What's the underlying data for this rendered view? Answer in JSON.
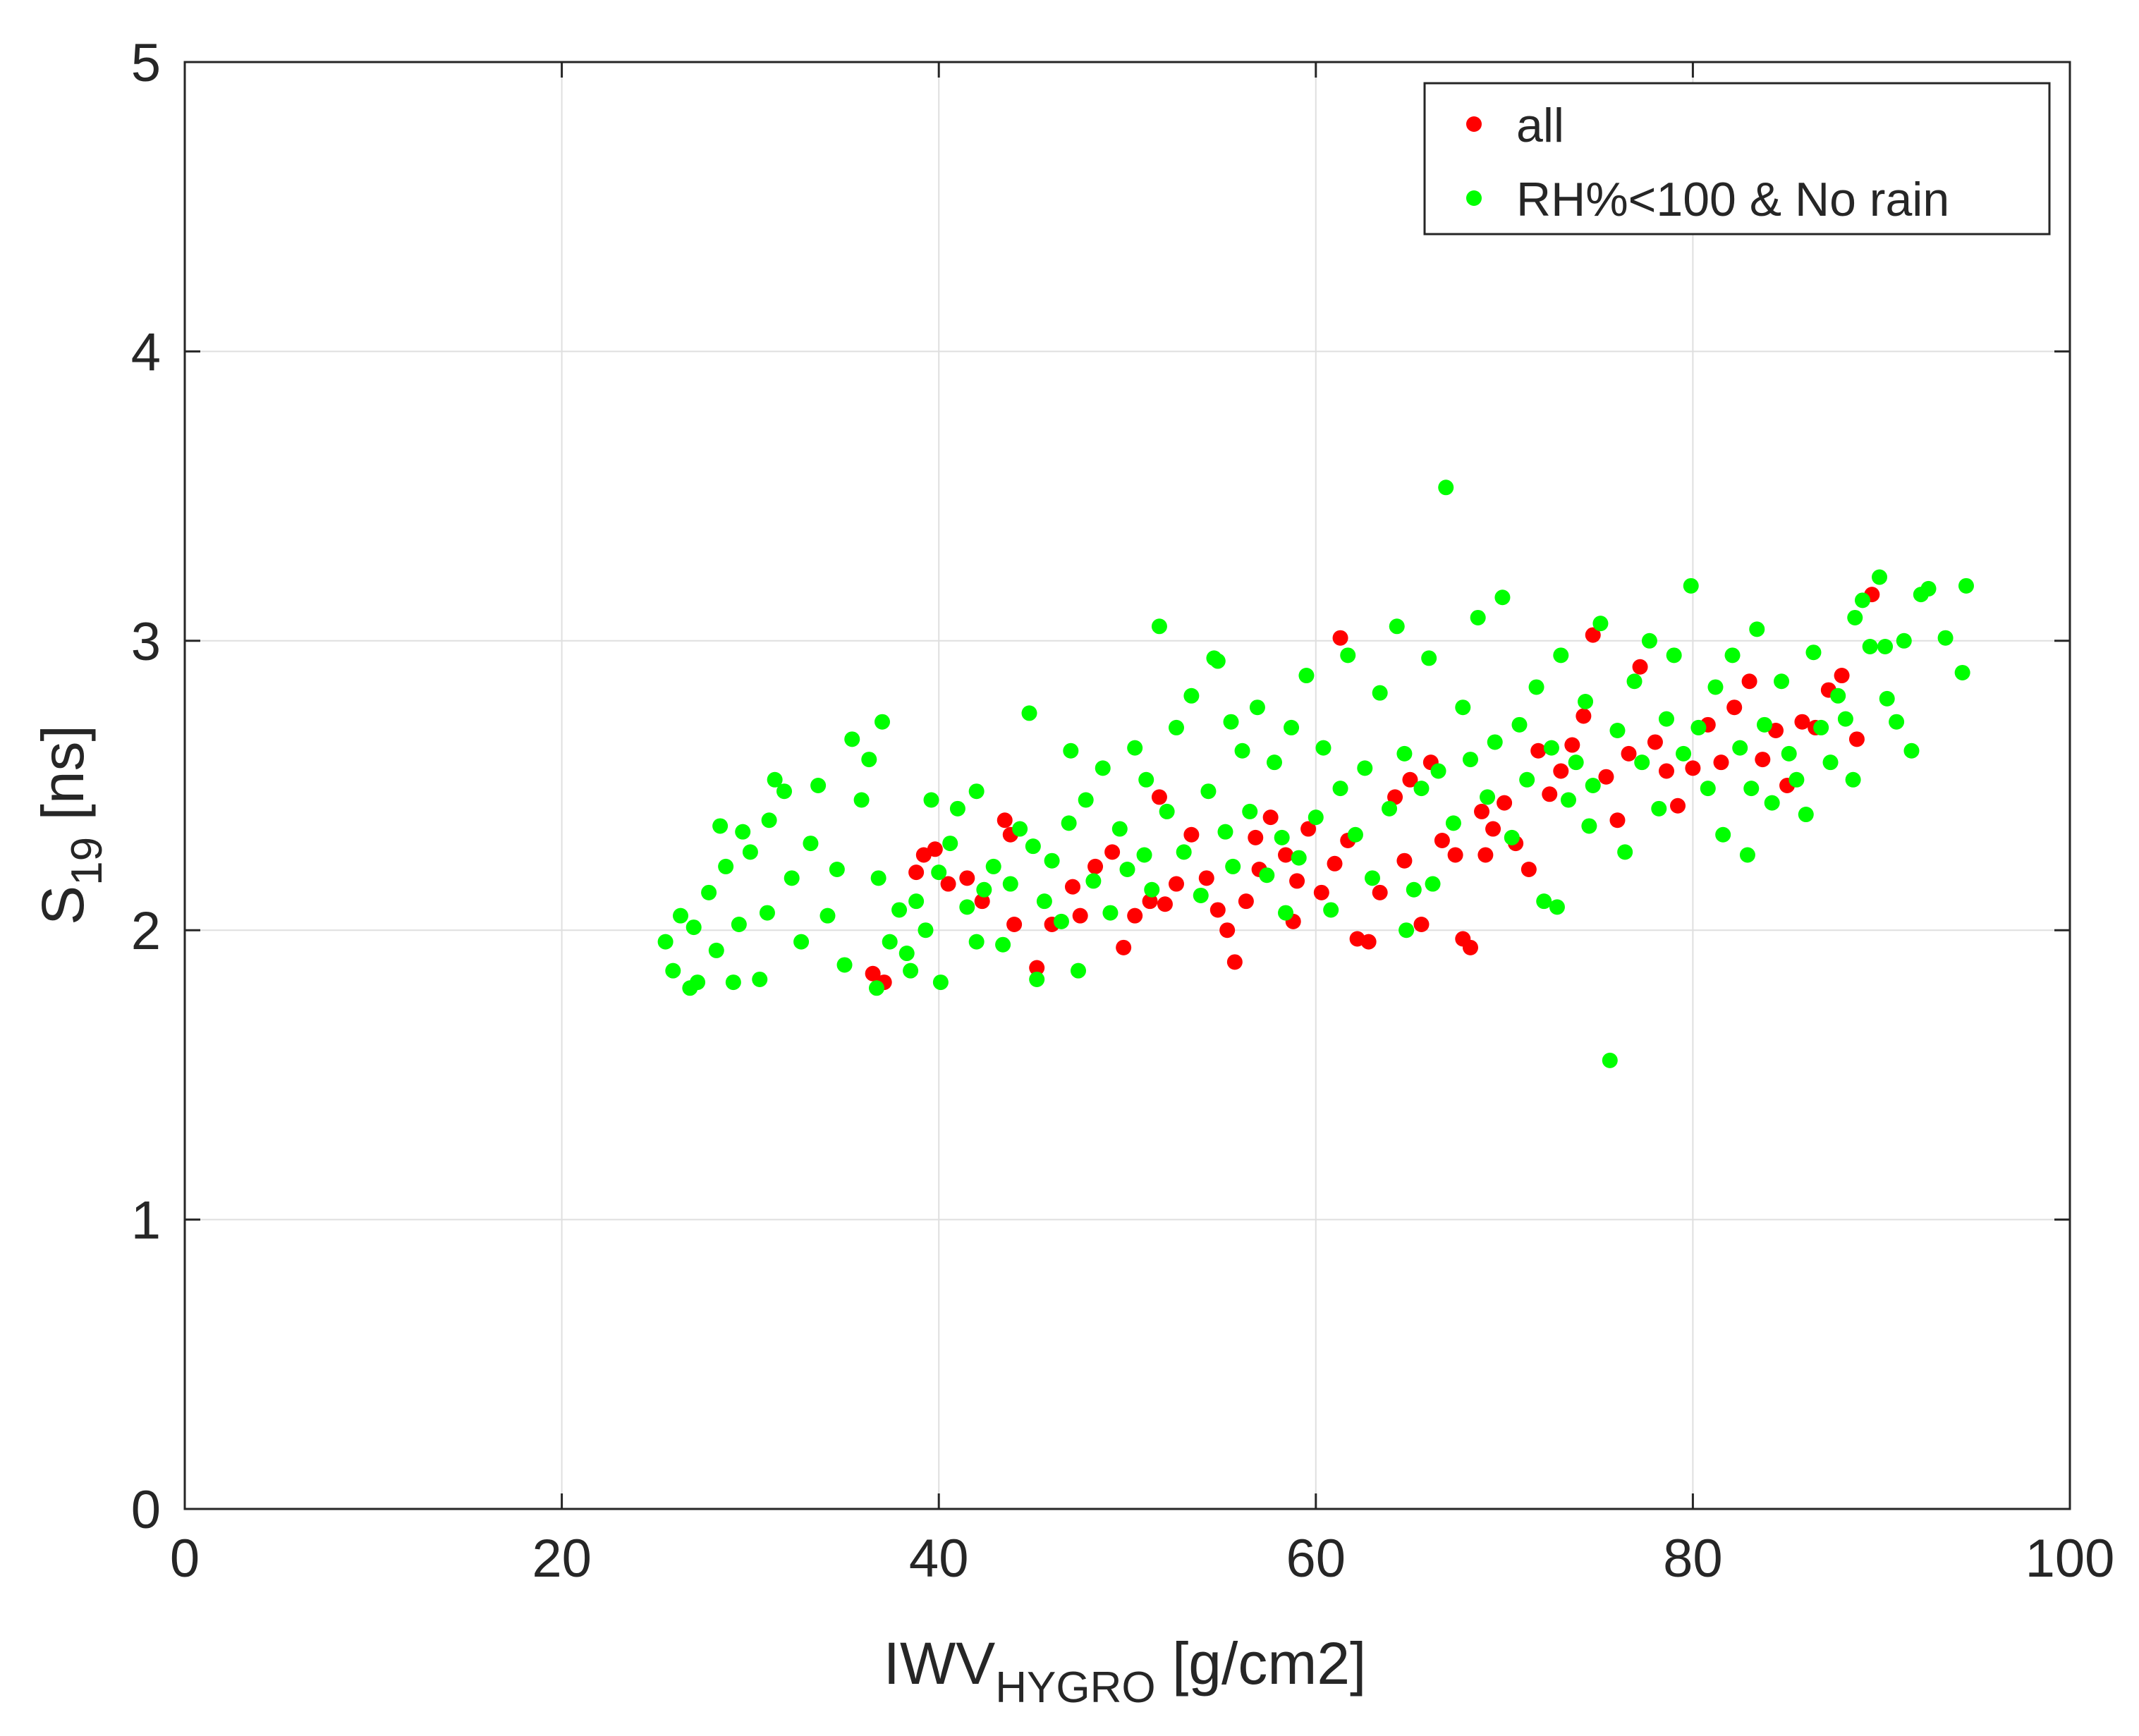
{
  "chart_data": {
    "type": "scatter",
    "xlabel": {
      "main": "IWV",
      "sub": "HYGRO",
      "unit": " [g/cm2]"
    },
    "ylabel": {
      "main": "S",
      "sub": "19",
      "unit": " [ns]"
    },
    "xlim": [
      0,
      100
    ],
    "ylim": [
      0,
      5
    ],
    "xticks": [
      "0",
      "20",
      "40",
      "60",
      "80",
      "100"
    ],
    "yticks": [
      "0",
      "1",
      "2",
      "3",
      "4",
      "5"
    ],
    "grid": true,
    "legend_placement": "top-right",
    "series": [
      {
        "name": "all",
        "color": "#ff0000",
        "points": [
          [
            38.8,
            2.2
          ],
          [
            39.2,
            2.26
          ],
          [
            39.8,
            2.28
          ],
          [
            40.5,
            2.16
          ],
          [
            41.5,
            2.18
          ],
          [
            42.3,
            2.1
          ],
          [
            43.5,
            2.38
          ],
          [
            43.8,
            2.33
          ],
          [
            44.0,
            2.02
          ],
          [
            45.2,
            1.87
          ],
          [
            46.0,
            2.02
          ],
          [
            47.1,
            2.15
          ],
          [
            48.3,
            2.22
          ],
          [
            49.2,
            2.27
          ],
          [
            49.8,
            1.94
          ],
          [
            50.4,
            2.05
          ],
          [
            51.2,
            2.1
          ],
          [
            51.7,
            2.46
          ],
          [
            52.6,
            2.16
          ],
          [
            53.4,
            2.33
          ],
          [
            54.2,
            2.18
          ],
          [
            54.8,
            2.07
          ],
          [
            55.3,
            2.0
          ],
          [
            55.7,
            1.89
          ],
          [
            56.3,
            2.1
          ],
          [
            57.0,
            2.21
          ],
          [
            57.6,
            2.39
          ],
          [
            58.4,
            2.26
          ],
          [
            59.0,
            2.17
          ],
          [
            59.6,
            2.35
          ],
          [
            60.3,
            2.13
          ],
          [
            61.3,
            3.01
          ],
          [
            61.7,
            2.31
          ],
          [
            62.2,
            1.97
          ],
          [
            62.8,
            1.96
          ],
          [
            63.4,
            2.13
          ],
          [
            64.2,
            2.46
          ],
          [
            64.7,
            2.24
          ],
          [
            65.6,
            2.02
          ],
          [
            66.1,
            2.58
          ],
          [
            66.7,
            2.31
          ],
          [
            67.4,
            2.26
          ],
          [
            67.8,
            1.97
          ],
          [
            68.2,
            1.94
          ],
          [
            68.8,
            2.41
          ],
          [
            69.4,
            2.35
          ],
          [
            70.0,
            2.44
          ],
          [
            70.6,
            2.3
          ],
          [
            71.3,
            2.21
          ],
          [
            71.8,
            2.62
          ],
          [
            72.4,
            2.47
          ],
          [
            73.0,
            2.55
          ],
          [
            73.6,
            2.64
          ],
          [
            74.2,
            2.74
          ],
          [
            74.7,
            3.02
          ],
          [
            75.4,
            2.53
          ],
          [
            76.0,
            2.38
          ],
          [
            76.6,
            2.61
          ],
          [
            77.2,
            2.91
          ],
          [
            78.0,
            2.65
          ],
          [
            78.6,
            2.55
          ],
          [
            79.2,
            2.43
          ],
          [
            80.0,
            2.56
          ],
          [
            80.8,
            2.71
          ],
          [
            81.5,
            2.58
          ],
          [
            82.2,
            2.77
          ],
          [
            83.0,
            2.86
          ],
          [
            83.7,
            2.59
          ],
          [
            84.4,
            2.69
          ],
          [
            85.0,
            2.5
          ],
          [
            85.8,
            2.72
          ],
          [
            86.5,
            2.7
          ],
          [
            87.2,
            2.83
          ],
          [
            87.9,
            2.88
          ],
          [
            88.7,
            2.66
          ],
          [
            89.5,
            3.16
          ],
          [
            36.5,
            1.85
          ],
          [
            37.1,
            1.82
          ],
          [
            52.0,
            2.09
          ],
          [
            58.8,
            2.03
          ],
          [
            65.0,
            2.52
          ],
          [
            69.0,
            2.26
          ],
          [
            61.0,
            2.23
          ],
          [
            56.8,
            2.32
          ],
          [
            47.5,
            2.05
          ]
        ]
      },
      {
        "name": "RH%<100 & No rain",
        "color": "#00ff00",
        "points": [
          [
            25.5,
            1.96
          ],
          [
            25.9,
            1.86
          ],
          [
            26.3,
            2.05
          ],
          [
            26.8,
            1.8
          ],
          [
            27.2,
            1.82
          ],
          [
            27.8,
            2.13
          ],
          [
            28.2,
            1.93
          ],
          [
            28.7,
            2.22
          ],
          [
            29.1,
            1.82
          ],
          [
            29.6,
            2.34
          ],
          [
            30.0,
            2.27
          ],
          [
            30.5,
            1.83
          ],
          [
            30.9,
            2.06
          ],
          [
            31.3,
            2.52
          ],
          [
            31.8,
            2.48
          ],
          [
            32.2,
            2.18
          ],
          [
            32.7,
            1.96
          ],
          [
            33.2,
            2.3
          ],
          [
            33.6,
            2.5
          ],
          [
            34.1,
            2.05
          ],
          [
            34.6,
            2.21
          ],
          [
            35.0,
            1.88
          ],
          [
            35.4,
            2.66
          ],
          [
            35.9,
            2.45
          ],
          [
            36.3,
            2.59
          ],
          [
            36.8,
            2.18
          ],
          [
            37.0,
            2.72
          ],
          [
            37.4,
            1.96
          ],
          [
            37.9,
            2.07
          ],
          [
            38.3,
            1.92
          ],
          [
            38.8,
            2.1
          ],
          [
            39.3,
            2.0
          ],
          [
            39.6,
            2.45
          ],
          [
            40.1,
            1.82
          ],
          [
            40.6,
            2.3
          ],
          [
            41.0,
            2.42
          ],
          [
            41.5,
            2.08
          ],
          [
            42.0,
            2.48
          ],
          [
            42.4,
            2.14
          ],
          [
            42.9,
            2.22
          ],
          [
            43.4,
            1.95
          ],
          [
            43.8,
            2.16
          ],
          [
            44.3,
            2.35
          ],
          [
            44.8,
            2.75
          ],
          [
            45.2,
            1.83
          ],
          [
            45.6,
            2.1
          ],
          [
            46.0,
            2.24
          ],
          [
            46.5,
            2.03
          ],
          [
            46.9,
            2.37
          ],
          [
            47.4,
            1.86
          ],
          [
            47.8,
            2.45
          ],
          [
            48.2,
            2.17
          ],
          [
            48.7,
            2.56
          ],
          [
            49.1,
            2.06
          ],
          [
            49.6,
            2.35
          ],
          [
            50.0,
            2.21
          ],
          [
            50.4,
            2.63
          ],
          [
            50.9,
            2.26
          ],
          [
            51.3,
            2.14
          ],
          [
            51.7,
            3.05
          ],
          [
            52.1,
            2.41
          ],
          [
            52.6,
            2.7
          ],
          [
            53.0,
            2.27
          ],
          [
            53.4,
            2.81
          ],
          [
            53.9,
            2.12
          ],
          [
            54.3,
            2.48
          ],
          [
            54.8,
            2.93
          ],
          [
            55.2,
            2.34
          ],
          [
            55.6,
            2.22
          ],
          [
            56.1,
            2.62
          ],
          [
            56.5,
            2.41
          ],
          [
            56.9,
            2.77
          ],
          [
            57.4,
            2.19
          ],
          [
            57.8,
            2.58
          ],
          [
            58.2,
            2.32
          ],
          [
            58.7,
            2.7
          ],
          [
            59.1,
            2.25
          ],
          [
            59.5,
            2.88
          ],
          [
            60.0,
            2.39
          ],
          [
            60.4,
            2.63
          ],
          [
            60.8,
            2.07
          ],
          [
            61.3,
            2.49
          ],
          [
            61.7,
            2.95
          ],
          [
            62.1,
            2.33
          ],
          [
            62.6,
            2.56
          ],
          [
            63.0,
            2.18
          ],
          [
            63.4,
            2.82
          ],
          [
            63.9,
            2.42
          ],
          [
            64.3,
            3.05
          ],
          [
            64.7,
            2.61
          ],
          [
            65.2,
            2.14
          ],
          [
            65.6,
            2.49
          ],
          [
            66.0,
            2.94
          ],
          [
            66.5,
            2.55
          ],
          [
            66.9,
            3.53
          ],
          [
            67.3,
            2.37
          ],
          [
            67.8,
            2.77
          ],
          [
            68.2,
            2.59
          ],
          [
            68.6,
            3.08
          ],
          [
            69.1,
            2.46
          ],
          [
            69.5,
            2.65
          ],
          [
            69.9,
            3.15
          ],
          [
            70.4,
            2.32
          ],
          [
            70.8,
            2.71
          ],
          [
            71.2,
            2.52
          ],
          [
            71.7,
            2.84
          ],
          [
            72.1,
            2.1
          ],
          [
            72.5,
            2.63
          ],
          [
            73.0,
            2.95
          ],
          [
            73.4,
            2.45
          ],
          [
            73.8,
            2.58
          ],
          [
            74.3,
            2.79
          ],
          [
            74.7,
            2.5
          ],
          [
            75.1,
            3.06
          ],
          [
            75.6,
            1.55
          ],
          [
            76.0,
            2.69
          ],
          [
            76.4,
            2.27
          ],
          [
            76.9,
            2.86
          ],
          [
            77.3,
            2.58
          ],
          [
            77.7,
            3.0
          ],
          [
            78.2,
            2.42
          ],
          [
            78.6,
            2.73
          ],
          [
            79.0,
            2.95
          ],
          [
            79.5,
            2.61
          ],
          [
            79.9,
            3.19
          ],
          [
            80.3,
            2.7
          ],
          [
            80.8,
            2.49
          ],
          [
            81.2,
            2.84
          ],
          [
            81.6,
            2.33
          ],
          [
            82.1,
            2.95
          ],
          [
            82.5,
            2.63
          ],
          [
            82.9,
            2.26
          ],
          [
            83.4,
            3.04
          ],
          [
            83.8,
            2.71
          ],
          [
            84.2,
            2.44
          ],
          [
            84.7,
            2.86
          ],
          [
            85.1,
            2.61
          ],
          [
            85.5,
            2.52
          ],
          [
            86.0,
            2.4
          ],
          [
            86.4,
            2.96
          ],
          [
            86.8,
            2.7
          ],
          [
            87.3,
            2.58
          ],
          [
            87.7,
            2.81
          ],
          [
            88.1,
            2.73
          ],
          [
            88.6,
            3.08
          ],
          [
            89.0,
            3.14
          ],
          [
            89.4,
            2.98
          ],
          [
            89.9,
            3.22
          ],
          [
            90.3,
            2.8
          ],
          [
            90.8,
            2.72
          ],
          [
            91.2,
            3.0
          ],
          [
            91.6,
            2.62
          ],
          [
            92.1,
            3.16
          ],
          [
            92.5,
            3.18
          ],
          [
            93.4,
            3.01
          ],
          [
            94.3,
            2.89
          ],
          [
            94.5,
            3.19
          ],
          [
            90.2,
            2.98
          ],
          [
            88.5,
            2.52
          ],
          [
            83.1,
            2.49
          ],
          [
            74.5,
            2.36
          ],
          [
            72.8,
            2.08
          ],
          [
            66.2,
            2.16
          ],
          [
            64.8,
            2.0
          ],
          [
            58.4,
            2.06
          ],
          [
            55.5,
            2.72
          ],
          [
            54.6,
            2.94
          ],
          [
            51.0,
            2.52
          ],
          [
            47.0,
            2.62
          ],
          [
            45.0,
            2.29
          ],
          [
            42.0,
            1.96
          ],
          [
            40.0,
            2.2
          ],
          [
            38.5,
            1.86
          ],
          [
            36.7,
            1.8
          ],
          [
            31.0,
            2.38
          ],
          [
            29.4,
            2.02
          ],
          [
            28.4,
            2.36
          ],
          [
            27.0,
            2.01
          ]
        ]
      }
    ]
  }
}
